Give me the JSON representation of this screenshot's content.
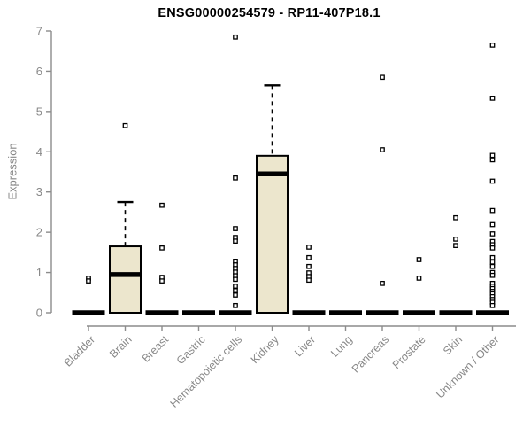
{
  "chart_data": {
    "type": "boxplot",
    "title": "ENSG00000254579 - RP11-407P18.1",
    "ylabel": "Expression",
    "xlabel": "",
    "ylim": [
      0,
      7
    ],
    "yticks": [
      0,
      1,
      2,
      3,
      4,
      5,
      6,
      7
    ],
    "grid": false,
    "legend": false,
    "categories": [
      "Bladder",
      "Brain",
      "Breast",
      "Gastric",
      "Hematopoietic cells",
      "Kidney",
      "Liver",
      "Lung",
      "Pancreas",
      "Prostate",
      "Skin",
      "Unknown / Other"
    ],
    "boxes": [
      {
        "category": "Bladder",
        "q1": 0,
        "median": 0,
        "q3": 0,
        "whisker_low": 0,
        "whisker_high": 0,
        "outliers": [
          0.86,
          0.79
        ]
      },
      {
        "category": "Brain",
        "q1": 0,
        "median": 0.95,
        "q3": 1.65,
        "whisker_low": 0,
        "whisker_high": 2.75,
        "outliers": [
          4.65
        ]
      },
      {
        "category": "Breast",
        "q1": 0,
        "median": 0,
        "q3": 0,
        "whisker_low": 0,
        "whisker_high": 0,
        "outliers": [
          2.67,
          1.61,
          0.88,
          0.79
        ]
      },
      {
        "category": "Gastric",
        "q1": 0,
        "median": 0,
        "q3": 0,
        "whisker_low": 0,
        "whisker_high": 0,
        "outliers": []
      },
      {
        "category": "Hematopoietic cells",
        "q1": 0,
        "median": 0,
        "q3": 0,
        "whisker_low": 0,
        "whisker_high": 0,
        "outliers": [
          6.85,
          3.35,
          2.09,
          1.87,
          1.78,
          1.28,
          1.19,
          1.1,
          1.01,
          0.92,
          0.83,
          0.66,
          0.55,
          0.44,
          0.18
        ]
      },
      {
        "category": "Kidney",
        "q1": 0,
        "median": 3.45,
        "q3": 3.9,
        "whisker_low": 0,
        "whisker_high": 5.65,
        "outliers": []
      },
      {
        "category": "Liver",
        "q1": 0,
        "median": 0,
        "q3": 0,
        "whisker_low": 0,
        "whisker_high": 0,
        "outliers": [
          1.63,
          1.37,
          1.15,
          0.99,
          0.9,
          0.81
        ]
      },
      {
        "category": "Lung",
        "q1": 0,
        "median": 0,
        "q3": 0,
        "whisker_low": 0,
        "whisker_high": 0,
        "outliers": []
      },
      {
        "category": "Pancreas",
        "q1": 0,
        "median": 0,
        "q3": 0,
        "whisker_low": 0,
        "whisker_high": 0,
        "outliers": [
          5.85,
          4.05,
          0.73
        ]
      },
      {
        "category": "Prostate",
        "q1": 0,
        "median": 0,
        "q3": 0,
        "whisker_low": 0,
        "whisker_high": 0,
        "outliers": [
          1.32,
          0.86
        ]
      },
      {
        "category": "Skin",
        "q1": 0,
        "median": 0,
        "q3": 0,
        "whisker_low": 0,
        "whisker_high": 0,
        "outliers": [
          2.36,
          1.83,
          1.67
        ]
      },
      {
        "category": "Unknown / Other",
        "q1": 0,
        "median": 0,
        "q3": 0,
        "whisker_low": 0,
        "whisker_high": 0,
        "outliers": [
          6.65,
          5.33,
          3.91,
          3.8,
          3.27,
          2.54,
          2.19,
          1.96,
          1.77,
          1.69,
          1.61,
          1.37,
          1.26,
          1.15,
          1.0,
          0.93,
          0.73,
          0.66,
          0.6,
          0.53,
          0.47,
          0.4,
          0.33,
          0.26,
          0.18
        ]
      }
    ],
    "colors": {
      "background": "#ffffff",
      "box_fill": "#ece6cd",
      "box_stroke": "#000000",
      "median": "#000000",
      "whisker": "#000000",
      "outlier_stroke": "#000000",
      "axis": "#8c8c8c",
      "tick_label": "#888888",
      "title": "#000000"
    }
  }
}
